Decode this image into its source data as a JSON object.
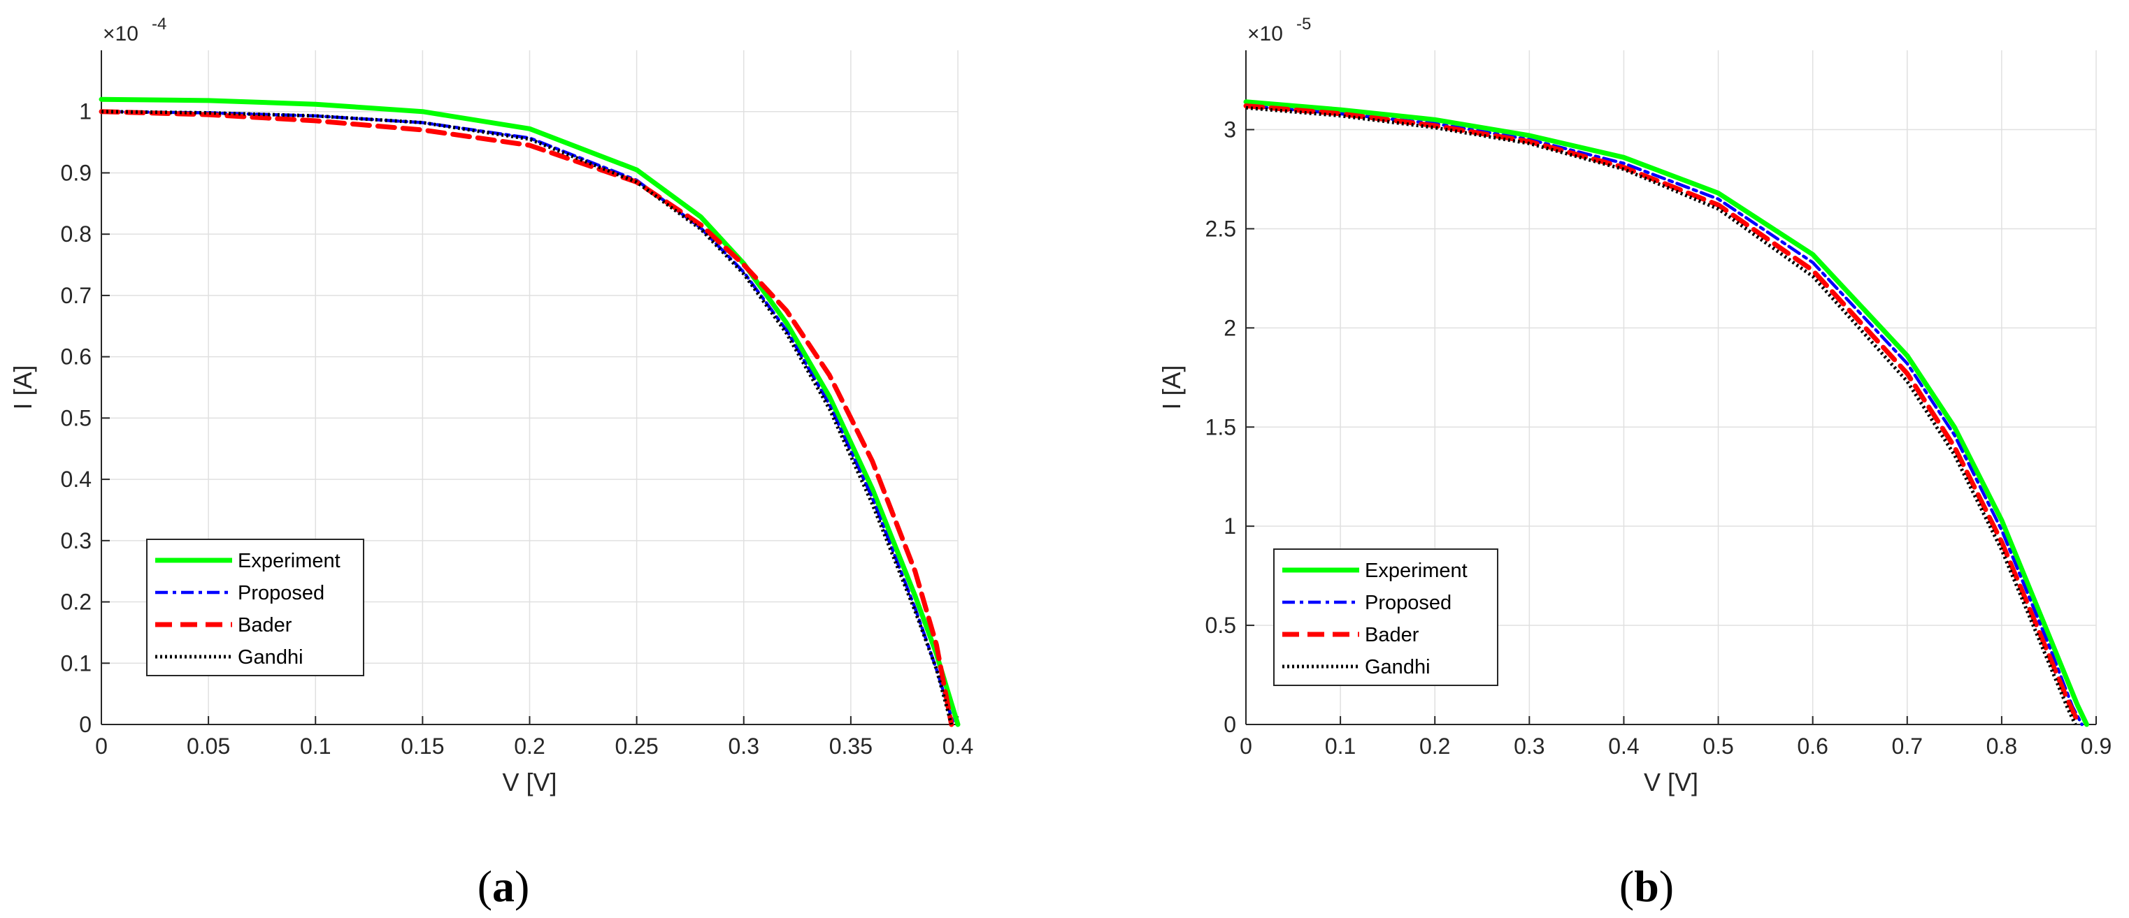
{
  "chart_data": [
    {
      "type": "line",
      "panel_label": "(a)",
      "panel_letter": "a",
      "xlabel": "V [V]",
      "ylabel": "I [A]",
      "xlim": [
        0,
        0.4
      ],
      "ylim": [
        0,
        1.1
      ],
      "y_exponent_label": "×10",
      "y_exponent_power": "-4",
      "x_ticks": [
        "0",
        "0.05",
        "0.1",
        "0.15",
        "0.2",
        "0.25",
        "0.3",
        "0.35",
        "0.4"
      ],
      "x_tick_values": [
        0,
        0.05,
        0.1,
        0.15,
        0.2,
        0.25,
        0.3,
        0.35,
        0.4
      ],
      "y_ticks": [
        "0",
        "0.1",
        "0.2",
        "0.3",
        "0.4",
        "0.5",
        "0.6",
        "0.7",
        "0.8",
        "0.9",
        "1"
      ],
      "y_tick_values": [
        0,
        0.1,
        0.2,
        0.3,
        0.4,
        0.5,
        0.6,
        0.7,
        0.8,
        0.9,
        1.0
      ],
      "grid": true,
      "legend_position": "bottom-left",
      "series": [
        {
          "name": "Experiment",
          "color": "#00ff00",
          "dash": "solid",
          "x": [
            0,
            0.05,
            0.1,
            0.15,
            0.2,
            0.25,
            0.28,
            0.3,
            0.32,
            0.34,
            0.36,
            0.38,
            0.39,
            0.4
          ],
          "y": [
            1.02,
            1.018,
            1.012,
            1.0,
            0.972,
            0.905,
            0.828,
            0.752,
            0.655,
            0.535,
            0.385,
            0.21,
            0.115,
            0.0
          ]
        },
        {
          "name": "Proposed",
          "color": "#0000ff",
          "dash": "dashdot",
          "x": [
            0,
            0.05,
            0.1,
            0.15,
            0.2,
            0.25,
            0.28,
            0.3,
            0.32,
            0.34,
            0.36,
            0.38,
            0.39,
            0.398
          ],
          "y": [
            1.0,
            0.998,
            0.993,
            0.982,
            0.957,
            0.888,
            0.81,
            0.738,
            0.643,
            0.522,
            0.37,
            0.19,
            0.09,
            0.0
          ]
        },
        {
          "name": "Bader",
          "color": "#ff0000",
          "dash": "dashed",
          "x": [
            0,
            0.05,
            0.1,
            0.15,
            0.2,
            0.25,
            0.28,
            0.3,
            0.32,
            0.34,
            0.36,
            0.38,
            0.39,
            0.397
          ],
          "y": [
            1.0,
            0.995,
            0.985,
            0.97,
            0.945,
            0.885,
            0.815,
            0.75,
            0.675,
            0.57,
            0.43,
            0.25,
            0.13,
            0.0
          ]
        },
        {
          "name": "Gandhi",
          "color": "#000000",
          "dash": "dotted",
          "x": [
            0,
            0.05,
            0.1,
            0.15,
            0.2,
            0.25,
            0.28,
            0.3,
            0.32,
            0.34,
            0.36,
            0.38,
            0.39,
            0.397
          ],
          "y": [
            1.0,
            0.998,
            0.993,
            0.982,
            0.955,
            0.885,
            0.808,
            0.735,
            0.638,
            0.515,
            0.36,
            0.185,
            0.09,
            0.0
          ]
        }
      ]
    },
    {
      "type": "line",
      "panel_label": "(b)",
      "panel_letter": "b",
      "xlabel": "V [V]",
      "ylabel": "I [A]",
      "xlim": [
        0,
        0.9
      ],
      "ylim": [
        0,
        3.4
      ],
      "y_exponent_label": "×10",
      "y_exponent_power": "-5",
      "x_ticks": [
        "0",
        "0.1",
        "0.2",
        "0.3",
        "0.4",
        "0.5",
        "0.6",
        "0.7",
        "0.8",
        "0.9"
      ],
      "x_tick_values": [
        0,
        0.1,
        0.2,
        0.3,
        0.4,
        0.5,
        0.6,
        0.7,
        0.8,
        0.9
      ],
      "y_ticks": [
        "0",
        "0.5",
        "1",
        "1.5",
        "2",
        "2.5",
        "3"
      ],
      "y_tick_values": [
        0,
        0.5,
        1,
        1.5,
        2,
        2.5,
        3
      ],
      "grid": true,
      "legend_position": "bottom-left",
      "series": [
        {
          "name": "Experiment",
          "color": "#00ff00",
          "dash": "solid",
          "x": [
            0,
            0.1,
            0.2,
            0.3,
            0.4,
            0.5,
            0.6,
            0.7,
            0.75,
            0.8,
            0.85,
            0.88,
            0.89
          ],
          "y": [
            3.14,
            3.1,
            3.05,
            2.97,
            2.86,
            2.68,
            2.37,
            1.86,
            1.5,
            1.03,
            0.45,
            0.1,
            0.0
          ]
        },
        {
          "name": "Proposed",
          "color": "#0000ff",
          "dash": "dashdot",
          "x": [
            0,
            0.1,
            0.2,
            0.3,
            0.4,
            0.5,
            0.6,
            0.7,
            0.75,
            0.8,
            0.85,
            0.875,
            0.885
          ],
          "y": [
            3.12,
            3.08,
            3.03,
            2.95,
            2.83,
            2.65,
            2.33,
            1.82,
            1.46,
            0.98,
            0.4,
            0.09,
            0.0
          ]
        },
        {
          "name": "Bader",
          "color": "#ff0000",
          "dash": "dashed",
          "x": [
            0,
            0.1,
            0.2,
            0.3,
            0.4,
            0.5,
            0.6,
            0.7,
            0.75,
            0.8,
            0.85,
            0.87,
            0.882
          ],
          "y": [
            3.12,
            3.08,
            3.02,
            2.94,
            2.81,
            2.62,
            2.29,
            1.77,
            1.4,
            0.92,
            0.35,
            0.12,
            0.0
          ]
        },
        {
          "name": "Gandhi",
          "color": "#000000",
          "dash": "dotted",
          "x": [
            0,
            0.1,
            0.2,
            0.3,
            0.4,
            0.5,
            0.6,
            0.7,
            0.75,
            0.8,
            0.85,
            0.87,
            0.878
          ],
          "y": [
            3.11,
            3.07,
            3.01,
            2.93,
            2.8,
            2.6,
            2.26,
            1.73,
            1.36,
            0.88,
            0.31,
            0.08,
            0.0
          ]
        }
      ]
    }
  ]
}
